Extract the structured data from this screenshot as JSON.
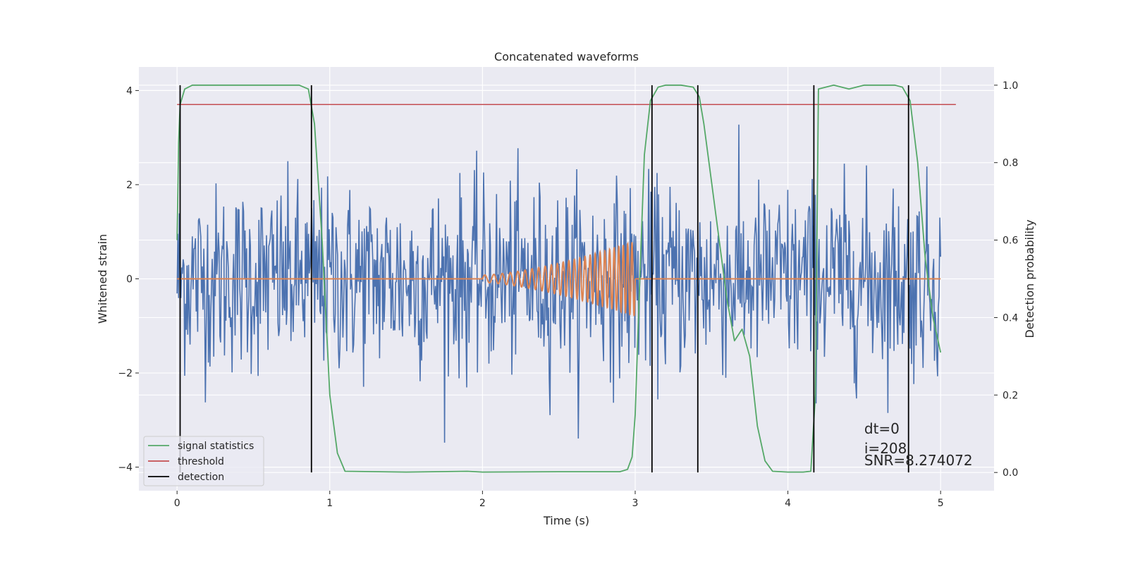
{
  "chart_data": {
    "type": "line",
    "title": "Concatenated waveforms",
    "xlabel": "Time (s)",
    "ylabel": "Whitened strain",
    "y2label": "Detection probability",
    "xlim": [
      -0.25,
      5.35
    ],
    "ylim": [
      -4.5,
      4.5
    ],
    "y2lim": [
      -0.047,
      1.047
    ],
    "xticks": [
      0,
      1,
      2,
      3,
      4,
      5
    ],
    "yticks": [
      -4,
      -2,
      0,
      2,
      4
    ],
    "yticklabels": [
      "−4",
      "−2",
      "0",
      "2",
      "4"
    ],
    "y2ticks": [
      0.0,
      0.2,
      0.4,
      0.6,
      0.8,
      1.0
    ],
    "y2ticklabels": [
      "0.0",
      "0.2",
      "0.4",
      "0.6",
      "0.8",
      "1.0"
    ],
    "grid": true,
    "legend_position": "lower-left",
    "annotation": [
      "dt=0",
      "i=208",
      "SNR=8.274072"
    ],
    "colors": {
      "background": "#eaeaf2",
      "grid": "#ffffff",
      "noise": "#4c72b0",
      "injection": "#dd8452",
      "signal_statistics": "#55a868",
      "threshold": "#c44e52",
      "detection": "#000000"
    },
    "noise_series": {
      "name": "",
      "x_range": [
        0,
        5
      ],
      "sample_count": 1000,
      "y_range": [
        -4.0,
        3.9
      ],
      "typical_std": 1.0
    },
    "injection_series": {
      "name": "",
      "chirp_start": 2.0,
      "chirp_end": 3.0,
      "amplitude_start": 0.08,
      "amplitude_end": 0.8,
      "x_range": [
        0,
        5
      ]
    },
    "series": [
      {
        "name": "signal statistics",
        "axis": "y2",
        "x": [
          0.0,
          0.01,
          0.02,
          0.05,
          0.1,
          0.5,
          0.8,
          0.86,
          0.9,
          0.95,
          1.0,
          1.05,
          1.1,
          1.5,
          1.9,
          2.0,
          2.5,
          2.9,
          2.95,
          2.98,
          3.0,
          3.03,
          3.06,
          3.1,
          3.15,
          3.2,
          3.3,
          3.38,
          3.42,
          3.45,
          3.5,
          3.6,
          3.65,
          3.7,
          3.75,
          3.8,
          3.85,
          3.9,
          4.0,
          4.1,
          4.15,
          4.18,
          4.2,
          4.3,
          4.4,
          4.5,
          4.6,
          4.7,
          4.75,
          4.8,
          4.85,
          4.9,
          4.95,
          5.0
        ],
        "values": [
          0.6,
          0.85,
          0.95,
          0.99,
          1.0,
          1.0,
          1.0,
          0.99,
          0.9,
          0.6,
          0.2,
          0.05,
          0.003,
          0.001,
          0.003,
          0.001,
          0.002,
          0.002,
          0.008,
          0.04,
          0.15,
          0.5,
          0.82,
          0.96,
          0.995,
          1.0,
          1.0,
          0.995,
          0.97,
          0.9,
          0.75,
          0.45,
          0.34,
          0.37,
          0.3,
          0.12,
          0.03,
          0.003,
          0.001,
          0.001,
          0.003,
          0.2,
          0.99,
          1.0,
          0.99,
          1.0,
          1.0,
          1.0,
          0.995,
          0.96,
          0.8,
          0.55,
          0.4,
          0.31
        ]
      },
      {
        "name": "threshold",
        "axis": "y2",
        "x": [
          0.0,
          5.1
        ],
        "values": [
          0.95,
          0.95
        ]
      }
    ],
    "detections": [
      0.02,
      0.88,
      3.11,
      3.41,
      4.17,
      4.79
    ],
    "legend": [
      {
        "label": "signal statistics",
        "color": "#55a868"
      },
      {
        "label": "threshold",
        "color": "#c44e52"
      },
      {
        "label": "detection",
        "color": "#000000"
      }
    ]
  }
}
